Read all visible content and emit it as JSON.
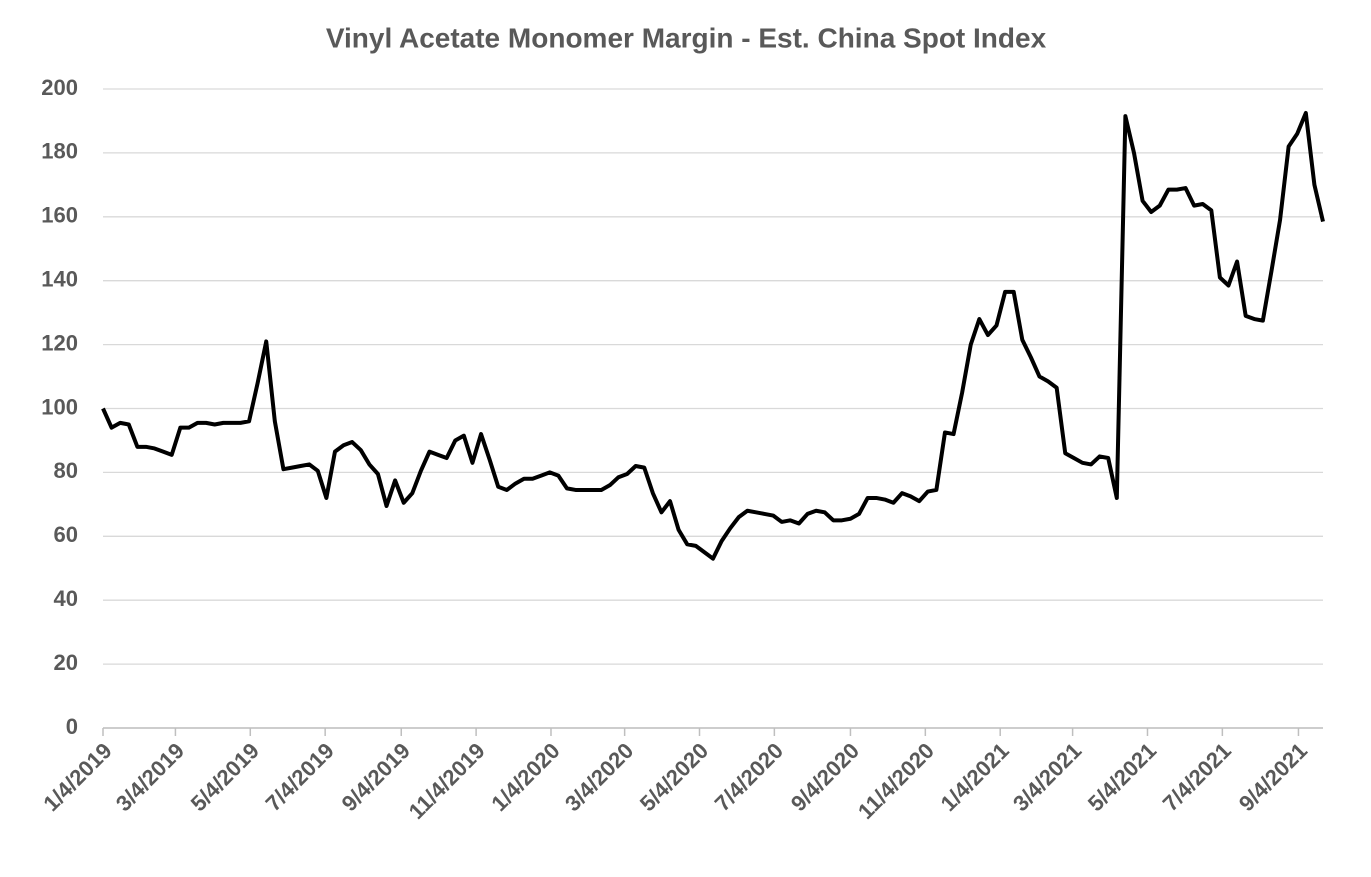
{
  "chart_data": {
    "type": "line",
    "title": "Vinyl Acetate Monomer Margin - Est. China Spot Index",
    "x": [
      "2019-01-04",
      "2019-01-11",
      "2019-01-18",
      "2019-01-25",
      "2019-02-01",
      "2019-02-08",
      "2019-02-15",
      "2019-02-22",
      "2019-03-01",
      "2019-03-08",
      "2019-03-15",
      "2019-03-22",
      "2019-03-29",
      "2019-04-05",
      "2019-04-12",
      "2019-04-19",
      "2019-04-26",
      "2019-05-03",
      "2019-05-10",
      "2019-05-17",
      "2019-05-24",
      "2019-05-31",
      "2019-06-07",
      "2019-06-14",
      "2019-06-21",
      "2019-06-28",
      "2019-07-05",
      "2019-07-12",
      "2019-07-19",
      "2019-07-26",
      "2019-08-02",
      "2019-08-09",
      "2019-08-16",
      "2019-08-23",
      "2019-08-30",
      "2019-09-06",
      "2019-09-13",
      "2019-09-20",
      "2019-09-27",
      "2019-10-04",
      "2019-10-11",
      "2019-10-18",
      "2019-10-25",
      "2019-11-01",
      "2019-11-08",
      "2019-11-15",
      "2019-11-22",
      "2019-11-29",
      "2019-12-06",
      "2019-12-13",
      "2019-12-20",
      "2019-12-27",
      "2020-01-03",
      "2020-01-10",
      "2020-01-17",
      "2020-01-24",
      "2020-01-31",
      "2020-02-07",
      "2020-02-14",
      "2020-02-21",
      "2020-02-28",
      "2020-03-06",
      "2020-03-13",
      "2020-03-20",
      "2020-03-27",
      "2020-04-03",
      "2020-04-10",
      "2020-04-17",
      "2020-04-24",
      "2020-05-01",
      "2020-05-08",
      "2020-05-15",
      "2020-05-22",
      "2020-05-29",
      "2020-06-05",
      "2020-06-12",
      "2020-06-19",
      "2020-06-26",
      "2020-07-03",
      "2020-07-10",
      "2020-07-17",
      "2020-07-24",
      "2020-07-31",
      "2020-08-07",
      "2020-08-14",
      "2020-08-21",
      "2020-08-28",
      "2020-09-04",
      "2020-09-11",
      "2020-09-18",
      "2020-09-25",
      "2020-10-02",
      "2020-10-09",
      "2020-10-16",
      "2020-10-23",
      "2020-10-30",
      "2020-11-06",
      "2020-11-13",
      "2020-11-20",
      "2020-11-27",
      "2020-12-04",
      "2020-12-11",
      "2020-12-18",
      "2020-12-25",
      "2021-01-01",
      "2021-01-08",
      "2021-01-15",
      "2021-01-22",
      "2021-01-29",
      "2021-02-05",
      "2021-02-12",
      "2021-02-19",
      "2021-02-26",
      "2021-03-05",
      "2021-03-12",
      "2021-03-19",
      "2021-03-26",
      "2021-04-02",
      "2021-04-09",
      "2021-04-16",
      "2021-04-23",
      "2021-04-30",
      "2021-05-07",
      "2021-05-14",
      "2021-05-21",
      "2021-05-28",
      "2021-06-04",
      "2021-06-11",
      "2021-06-18",
      "2021-06-25",
      "2021-07-02",
      "2021-07-09",
      "2021-07-16",
      "2021-07-23",
      "2021-07-30",
      "2021-08-06",
      "2021-08-13",
      "2021-08-20",
      "2021-08-27",
      "2021-09-03",
      "2021-09-10",
      "2021-09-17",
      "2021-09-24"
    ],
    "values": [
      100,
      94,
      95.5,
      95,
      88,
      88,
      87.5,
      86.5,
      85.5,
      94,
      94,
      95.5,
      95.5,
      95,
      95.5,
      95.5,
      95.5,
      96,
      108,
      121,
      96,
      81,
      81.5,
      82,
      82.5,
      80.5,
      72,
      86.5,
      88.5,
      89.5,
      87,
      82.5,
      79.5,
      69.5,
      77.5,
      70.5,
      73.5,
      80.5,
      86.5,
      85.5,
      84.5,
      90,
      91.5,
      83,
      92,
      84,
      75.5,
      74.5,
      76.5,
      78,
      78,
      79,
      80,
      79,
      75,
      74.5,
      74.5,
      74.5,
      74.5,
      76,
      78.5,
      79.5,
      82,
      81.5,
      73.5,
      67.5,
      71,
      62,
      57.5,
      57,
      55,
      53,
      58.5,
      62.5,
      66,
      68,
      67.5,
      67,
      66.5,
      64.5,
      65,
      64,
      67,
      68,
      67.5,
      65,
      65,
      65.5,
      67,
      72,
      72,
      71.5,
      70.5,
      73.5,
      72.5,
      71,
      74,
      74.5,
      92.5,
      92,
      105,
      120,
      128,
      123,
      126,
      136.5,
      136.5,
      121.5,
      116,
      110,
      108.5,
      106.5,
      86,
      84.5,
      83,
      82.5,
      85,
      84.5,
      72,
      191.5,
      180,
      165,
      161.5,
      163.5,
      168.5,
      168.5,
      169,
      163.5,
      164,
      162,
      141,
      138.5,
      146,
      129,
      128,
      127.5,
      143,
      159,
      182,
      186,
      192.5,
      170,
      158.5
    ],
    "color": "#000000",
    "xlim": [
      "2019-01-04",
      "2021-09-24"
    ],
    "xticks": [
      {
        "value": "2019-01-04",
        "label": "1/4/2019"
      },
      {
        "value": "2019-03-04",
        "label": "3/4/2019"
      },
      {
        "value": "2019-05-04",
        "label": "5/4/2019"
      },
      {
        "value": "2019-07-04",
        "label": "7/4/2019"
      },
      {
        "value": "2019-09-04",
        "label": "9/4/2019"
      },
      {
        "value": "2019-11-04",
        "label": "11/4/2019"
      },
      {
        "value": "2020-01-04",
        "label": "1/4/2020"
      },
      {
        "value": "2020-03-04",
        "label": "3/4/2020"
      },
      {
        "value": "2020-05-04",
        "label": "5/4/2020"
      },
      {
        "value": "2020-07-04",
        "label": "7/4/2020"
      },
      {
        "value": "2020-09-04",
        "label": "9/4/2020"
      },
      {
        "value": "2020-11-04",
        "label": "11/4/2020"
      },
      {
        "value": "2021-01-04",
        "label": "1/4/2021"
      },
      {
        "value": "2021-03-04",
        "label": "3/4/2021"
      },
      {
        "value": "2021-05-04",
        "label": "5/4/2021"
      },
      {
        "value": "2021-07-04",
        "label": "7/4/2021"
      },
      {
        "value": "2021-09-04",
        "label": "9/4/2021"
      }
    ],
    "ylim": [
      0,
      200
    ],
    "yticks": [
      0,
      20,
      40,
      60,
      80,
      100,
      120,
      140,
      160,
      180,
      200
    ],
    "grid": true
  }
}
